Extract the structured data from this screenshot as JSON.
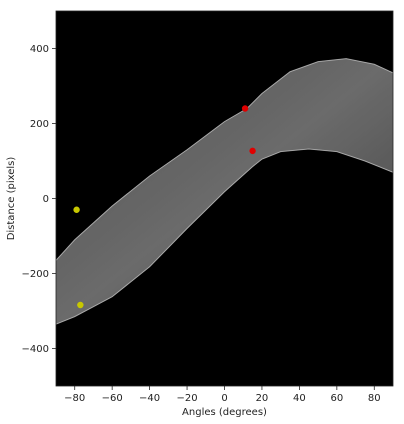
{
  "chart_data": {
    "type": "heatmap",
    "title": "",
    "xlabel": "Angles (degrees)",
    "ylabel": "Distance (pixels)",
    "xlim": [
      -90,
      90
    ],
    "ylim": [
      500,
      -500
    ],
    "xticks": [
      -80,
      -60,
      -40,
      -20,
      0,
      20,
      40,
      60,
      80
    ],
    "yticks": [
      -400,
      -200,
      0,
      200,
      400
    ],
    "grid": false,
    "background_color": "#000000",
    "peak_colors": {
      "yellow": "#c8c800",
      "red": "#e00000"
    },
    "series": [
      {
        "name": "",
        "kind": "hough-accumulator-band",
        "upper_edge": [
          [
            -90,
            -335
          ],
          [
            -80,
            -315
          ],
          [
            -60,
            -262
          ],
          [
            -40,
            -182
          ],
          [
            -20,
            -80
          ],
          [
            0,
            18
          ],
          [
            15,
            85
          ],
          [
            20,
            105
          ],
          [
            30,
            125
          ],
          [
            45,
            132
          ],
          [
            60,
            125
          ],
          [
            75,
            100
          ],
          [
            90,
            70
          ]
        ],
        "lower_edge": [
          [
            -90,
            -165
          ],
          [
            -80,
            -110
          ],
          [
            -60,
            -20
          ],
          [
            -40,
            60
          ],
          [
            -20,
            130
          ],
          [
            0,
            205
          ],
          [
            12,
            240
          ],
          [
            20,
            280
          ],
          [
            35,
            338
          ],
          [
            50,
            365
          ],
          [
            65,
            373
          ],
          [
            80,
            358
          ],
          [
            90,
            335
          ]
        ]
      }
    ],
    "peaks": [
      {
        "angle": -77,
        "distance": -284,
        "color": "yellow"
      },
      {
        "angle": -79,
        "distance": -30,
        "color": "yellow"
      },
      {
        "angle": 15,
        "distance": 127,
        "color": "red"
      },
      {
        "angle": 11,
        "distance": 240,
        "color": "red"
      }
    ]
  }
}
